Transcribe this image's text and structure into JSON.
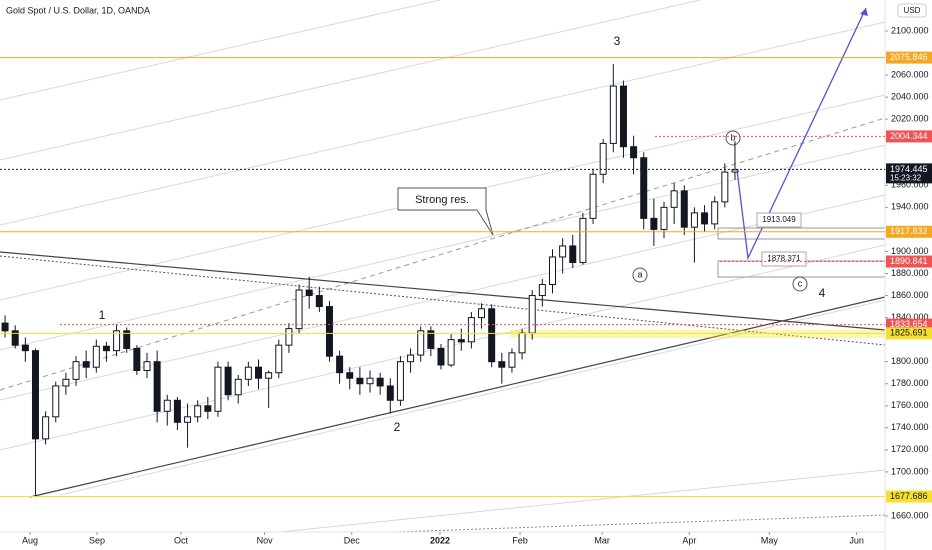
{
  "chart_data": {
    "type": "candlestick",
    "title": "Gold Spot / U.S. Dollar, 1D, OANDA",
    "currency": "USD",
    "open": [
      1835,
      1828,
      1815,
      1810,
      1730,
      1750,
      1778,
      1784,
      1800,
      1795,
      1814,
      1810,
      1828,
      1812,
      1792,
      1800,
      1755,
      1765,
      1745,
      1750,
      1760,
      1755,
      1795,
      1770,
      1784,
      1795,
      1785,
      1790,
      1815,
      1830,
      1865,
      1860,
      1850,
      1805,
      1790,
      1785,
      1780,
      1785,
      1778,
      1765,
      1800,
      1806,
      1828,
      1812,
      1797,
      1820,
      1818,
      1840,
      1848,
      1800,
      1795,
      1808,
      1826,
      1860,
      1870,
      1895,
      1905,
      1890,
      1930,
      1970,
      1998,
      2050,
      1995,
      1985,
      1930,
      1920,
      1940,
      1955,
      1922,
      1935,
      1925,
      1945,
      1972
    ],
    "high": [
      1842,
      1833,
      1822,
      1812,
      1755,
      1782,
      1790,
      1805,
      1810,
      1820,
      1818,
      1834,
      1831,
      1815,
      1808,
      1810,
      1770,
      1768,
      1762,
      1765,
      1768,
      1800,
      1800,
      1788,
      1800,
      1802,
      1792,
      1820,
      1835,
      1870,
      1877,
      1868,
      1855,
      1810,
      1795,
      1795,
      1792,
      1790,
      1785,
      1805,
      1812,
      1832,
      1832,
      1816,
      1825,
      1830,
      1845,
      1853,
      1852,
      1808,
      1812,
      1830,
      1865,
      1875,
      1902,
      1912,
      1915,
      1935,
      1975,
      2002,
      2070,
      2055,
      2005,
      1990,
      1948,
      1945,
      1962,
      1960,
      1940,
      1942,
      1950,
      1980,
      2000
    ],
    "low": [
      1822,
      1812,
      1800,
      1677,
      1725,
      1745,
      1770,
      1778,
      1785,
      1790,
      1800,
      1805,
      1808,
      1788,
      1785,
      1745,
      1742,
      1738,
      1722,
      1745,
      1748,
      1750,
      1765,
      1762,
      1778,
      1775,
      1758,
      1785,
      1808,
      1825,
      1848,
      1845,
      1800,
      1780,
      1775,
      1770,
      1772,
      1770,
      1753,
      1760,
      1790,
      1800,
      1805,
      1793,
      1795,
      1810,
      1812,
      1830,
      1795,
      1780,
      1790,
      1802,
      1820,
      1850,
      1862,
      1880,
      1885,
      1888,
      1925,
      1962,
      1990,
      1985,
      1970,
      1920,
      1905,
      1912,
      1925,
      1915,
      1890,
      1918,
      1920,
      1940,
      1965
    ],
    "close": [
      1828,
      1815,
      1810,
      1730,
      1750,
      1778,
      1784,
      1800,
      1795,
      1814,
      1810,
      1828,
      1812,
      1792,
      1800,
      1755,
      1765,
      1745,
      1750,
      1760,
      1755,
      1795,
      1770,
      1784,
      1795,
      1785,
      1790,
      1815,
      1830,
      1865,
      1860,
      1850,
      1805,
      1790,
      1785,
      1780,
      1785,
      1778,
      1765,
      1800,
      1806,
      1828,
      1812,
      1797,
      1820,
      1818,
      1840,
      1848,
      1800,
      1795,
      1808,
      1826,
      1860,
      1870,
      1895,
      1905,
      1890,
      1930,
      1970,
      1998,
      2050,
      1995,
      1985,
      1930,
      1920,
      1940,
      1955,
      1922,
      1935,
      1925,
      1945,
      1972,
      1974
    ],
    "up_color": "#ffffff",
    "down_color": "#131722",
    "xlim": [
      -0.5,
      86.8
    ],
    "xticks": [
      {
        "value": 2.46,
        "label": "Aug"
      },
      {
        "value": 9.07,
        "label": "Sep"
      },
      {
        "value": 17.35,
        "label": "Oct"
      },
      {
        "value": 25.6,
        "label": "Nov"
      },
      {
        "value": 34.2,
        "label": "Dec"
      },
      {
        "value": 42.9,
        "label": "2022"
      },
      {
        "value": 50.8,
        "label": "Feb"
      },
      {
        "value": 58.9,
        "label": "Mar"
      },
      {
        "value": 67.5,
        "label": "Apr"
      },
      {
        "value": 75.4,
        "label": "May"
      },
      {
        "value": 84.0,
        "label": "Jun"
      }
    ],
    "ylim": [
      1645.5,
      2128.1
    ],
    "yticks": [
      {
        "value": 2100,
        "label": "2100.000"
      },
      {
        "value": 2060,
        "label": "2060.000"
      },
      {
        "value": 2040,
        "label": "2040.000"
      },
      {
        "value": 2020,
        "label": "2020.000"
      },
      {
        "value": 1960,
        "label": "1960.000"
      },
      {
        "value": 1940,
        "label": "1940.000"
      },
      {
        "value": 1900,
        "label": "1900.000"
      },
      {
        "value": 1880,
        "label": "1880.000"
      },
      {
        "value": 1860,
        "label": "1860.000"
      },
      {
        "value": 1840,
        "label": "1840.000"
      },
      {
        "value": 1800,
        "label": "1800.000"
      },
      {
        "value": 1780,
        "label": "1780.000"
      },
      {
        "value": 1760,
        "label": "1760.000"
      },
      {
        "value": 1740,
        "label": "1740.000"
      },
      {
        "value": 1720,
        "label": "1720.000"
      },
      {
        "value": 1700,
        "label": "1700.000"
      },
      {
        "value": 1660,
        "label": "1660.000"
      }
    ],
    "levels": [
      {
        "value": 2075.846,
        "color": "#f5a623",
        "style": "solid"
      },
      {
        "value": 2004.344,
        "color": "#f05353",
        "style": "dotted"
      },
      {
        "value": 1974.445,
        "color": "#131722",
        "style": "dotted"
      },
      {
        "value": 1917.832,
        "color": "#f5a623",
        "style": "solid"
      },
      {
        "value": 1890.841,
        "color": "#f05353",
        "style": "dotted"
      },
      {
        "value": 1833.654,
        "color": "#f05353",
        "style": "dotted"
      },
      {
        "value": 1825.691,
        "color": "#f5e12b",
        "style": "solid"
      },
      {
        "value": 1677.686,
        "color": "#f5e12b",
        "style": "solid"
      }
    ],
    "countdown": "15:23:32",
    "price_notes": [
      1913.049,
      1878.371
    ],
    "annotations": {
      "callout": "Strong res.",
      "wave_1": "1",
      "wave_2": "2",
      "wave_3": "3",
      "wave_4": "4",
      "wave_a": "a",
      "wave_b": "b",
      "wave_c": "c"
    }
  }
}
